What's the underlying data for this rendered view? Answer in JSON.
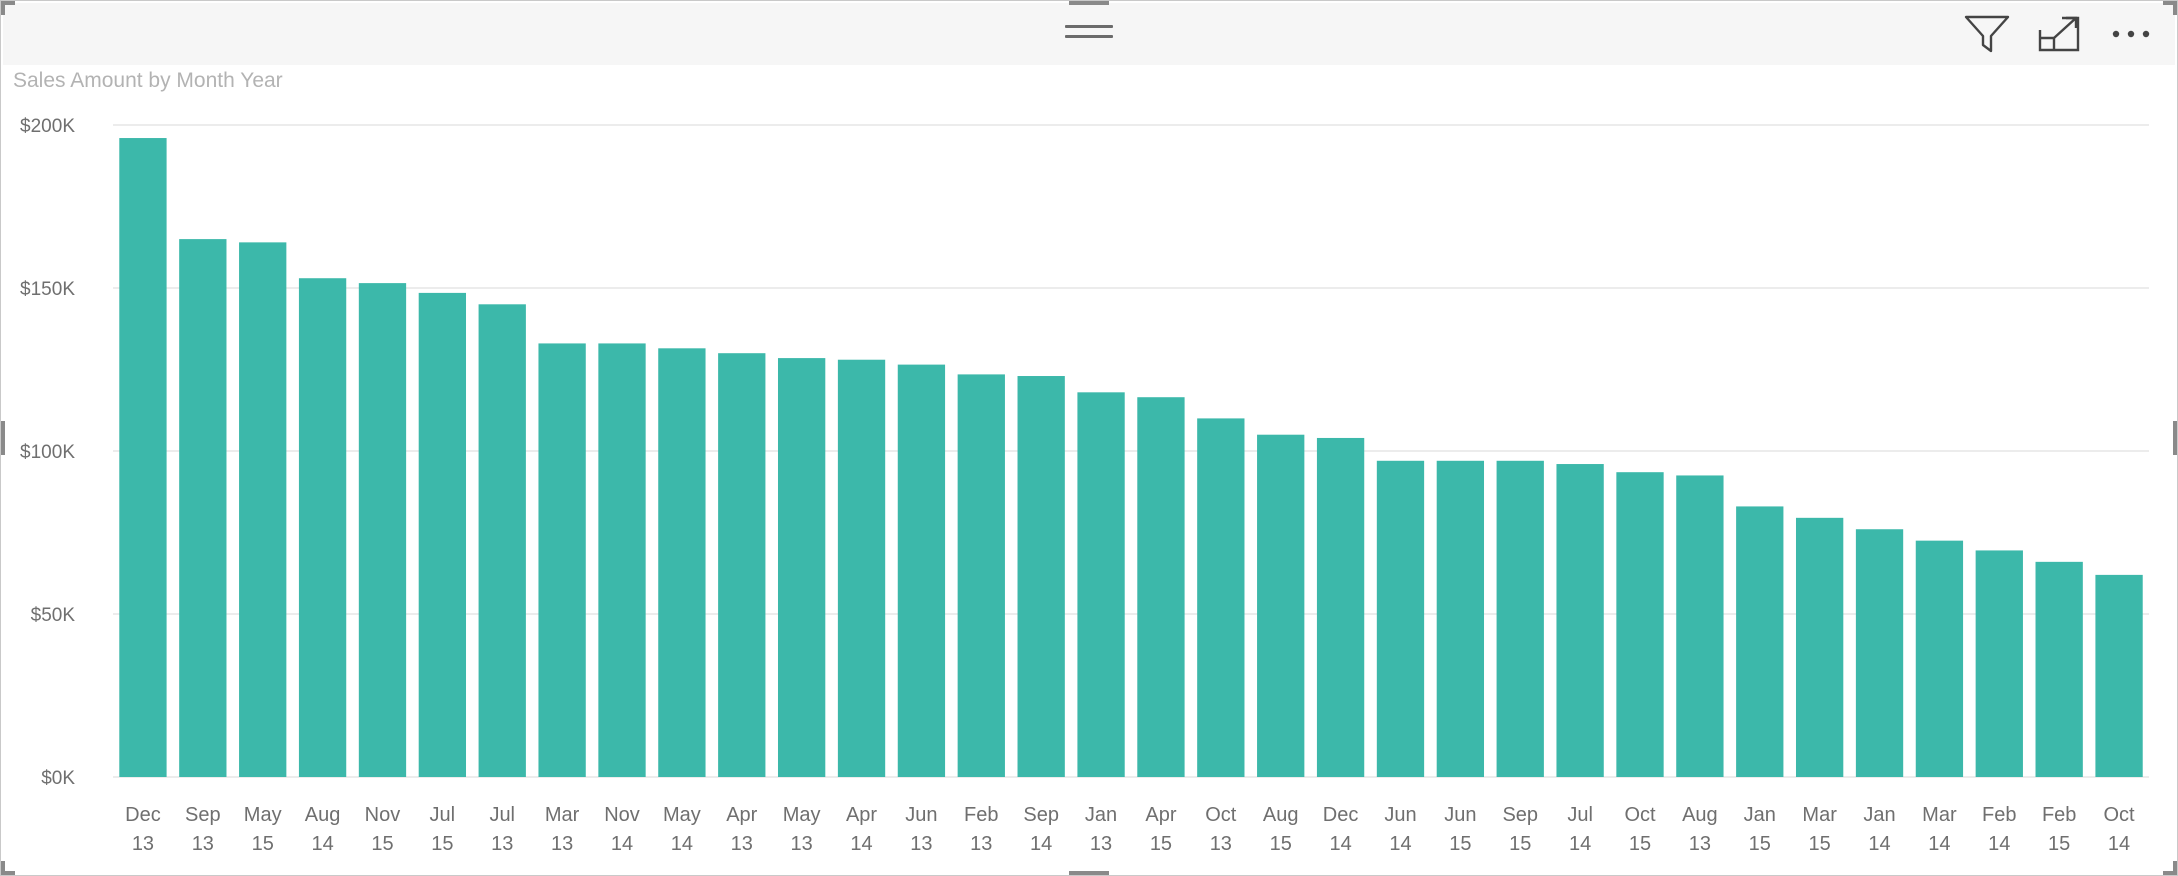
{
  "chart_data": {
    "type": "bar",
    "title": "Sales Amount by Month Year",
    "xlabel": "",
    "ylabel": "",
    "ylim": [
      0,
      200000
    ],
    "yticks": [
      {
        "value": 0,
        "label": "$0K"
      },
      {
        "value": 50000,
        "label": "$50K"
      },
      {
        "value": 100000,
        "label": "$100K"
      },
      {
        "value": 150000,
        "label": "$150K"
      },
      {
        "value": 200000,
        "label": "$200K"
      }
    ],
    "grid": true,
    "legend": "none",
    "bar_color": "#3CB8AA",
    "categories": [
      [
        "Dec",
        "13"
      ],
      [
        "Sep",
        "13"
      ],
      [
        "May",
        "15"
      ],
      [
        "Aug",
        "14"
      ],
      [
        "Nov",
        "15"
      ],
      [
        "Jul",
        "15"
      ],
      [
        "Jul",
        "13"
      ],
      [
        "Mar",
        "13"
      ],
      [
        "Nov",
        "14"
      ],
      [
        "May",
        "14"
      ],
      [
        "Apr",
        "13"
      ],
      [
        "May",
        "13"
      ],
      [
        "Apr",
        "14"
      ],
      [
        "Jun",
        "13"
      ],
      [
        "Feb",
        "13"
      ],
      [
        "Sep",
        "14"
      ],
      [
        "Jan",
        "13"
      ],
      [
        "Apr",
        "15"
      ],
      [
        "Oct",
        "13"
      ],
      [
        "Aug",
        "15"
      ],
      [
        "Dec",
        "14"
      ],
      [
        "Jun",
        "14"
      ],
      [
        "Jun",
        "15"
      ],
      [
        "Sep",
        "15"
      ],
      [
        "Jul",
        "14"
      ],
      [
        "Oct",
        "15"
      ],
      [
        "Aug",
        "13"
      ],
      [
        "Jan",
        "15"
      ],
      [
        "Mar",
        "15"
      ],
      [
        "Jan",
        "14"
      ],
      [
        "Mar",
        "14"
      ],
      [
        "Feb",
        "14"
      ],
      [
        "Feb",
        "15"
      ],
      [
        "Oct",
        "14"
      ]
    ],
    "values": [
      196000,
      165000,
      164000,
      153000,
      151500,
      148500,
      145000,
      133000,
      133000,
      131500,
      130000,
      128500,
      128000,
      126500,
      123500,
      123000,
      118000,
      116500,
      110000,
      105000,
      104000,
      97000,
      97000,
      97000,
      96000,
      93500,
      92500,
      83000,
      79500,
      76000,
      72500,
      69500,
      66000,
      62000
    ]
  },
  "toolbar": {
    "filter_icon": "filter-icon",
    "focus_icon": "focus-mode-icon",
    "more_icon": "more-options-icon",
    "grip_icon": "drag-handle-icon"
  }
}
